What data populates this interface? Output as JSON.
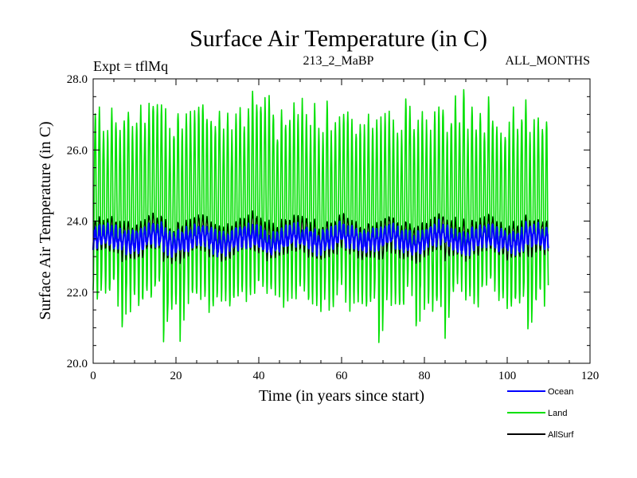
{
  "chart_data": {
    "type": "line",
    "title": "Surface Air Temperature (in C)",
    "subtitle_left": "Expt = tflMq",
    "subtitle_center": "213_2_MaBP",
    "subtitle_right": "ALL_MONTHS",
    "xlabel": "Time (in years since start)",
    "ylabel": "Surface Air Temperature (in C)",
    "xlim": [
      0,
      120
    ],
    "ylim": [
      20.0,
      28.0
    ],
    "x_ticks": [
      0,
      20,
      40,
      60,
      80,
      100,
      120
    ],
    "y_ticks": [
      20.0,
      22.0,
      24.0,
      26.0,
      28.0
    ],
    "x_tick_labels": [
      "0",
      "20",
      "40",
      "60",
      "80",
      "100",
      "120"
    ],
    "y_tick_labels": [
      "20.0",
      "22.0",
      "24.0",
      "26.0",
      "28.0"
    ],
    "grid": false,
    "legend_position": "bottom-right",
    "data_x_range_years": [
      0,
      110
    ],
    "series": [
      {
        "name": "Land",
        "color": "#00e000",
        "description_stats": {
          "cycle": "annual (monthly data)",
          "typical_min": 22.0,
          "typical_max": 27.0,
          "overall_min": 20.5,
          "overall_max": 27.6,
          "mean": 24.0
        }
      },
      {
        "name": "AllSurf",
        "color": "#000000",
        "description_stats": {
          "cycle": "annual (monthly data)",
          "typical_min": 23.0,
          "typical_max": 24.2,
          "mean": 23.5
        }
      },
      {
        "name": "Ocean",
        "color": "#0000ff",
        "description_stats": {
          "cycle": "annual (monthly data)",
          "typical_min": 23.15,
          "typical_max": 23.85,
          "mean": 23.5
        }
      }
    ],
    "legend": [
      {
        "name": "Ocean",
        "color": "#0000ff"
      },
      {
        "name": "Land",
        "color": "#00e000"
      },
      {
        "name": "AllSurf",
        "color": "#000000"
      }
    ]
  }
}
